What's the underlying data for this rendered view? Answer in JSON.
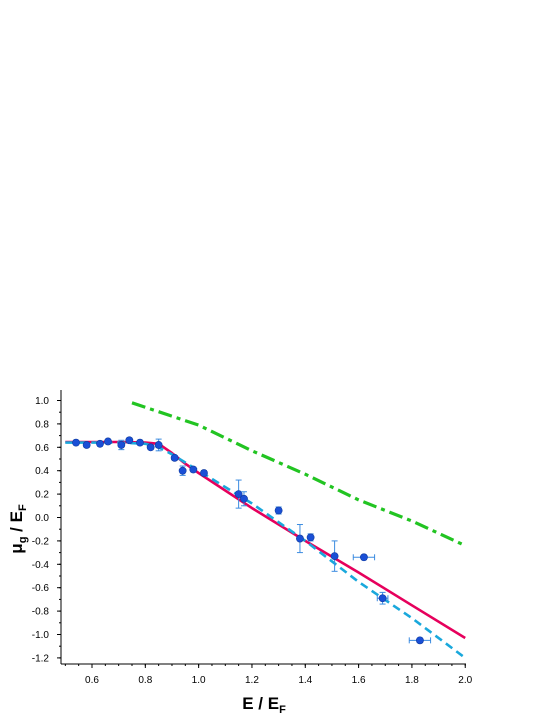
{
  "chart_data": {
    "type": "scatter",
    "x_ticks": [
      "0.6",
      "0.8",
      "1.0",
      "1.2",
      "1.4",
      "1.6",
      "1.8",
      "2.0"
    ],
    "y_ticks": [
      "1.0",
      "0.8",
      "0.6",
      "0.4",
      "0.2",
      "0.0",
      "-0.2",
      "-0.4",
      "-0.6",
      "-0.8",
      "-1.0",
      "-1.2"
    ],
    "xlabel": {
      "main": "E / E",
      "sub": "F"
    },
    "ylabel": {
      "main": "μ",
      "sub1": "g",
      "mid": " / E",
      "sub2": "F"
    },
    "xlim": [
      0.5,
      2.0
    ],
    "ylim": [
      -1.2,
      1.0
    ],
    "grid": false,
    "colors": {
      "data": "#1a4fd6",
      "solid_line": "#e6005c",
      "dashed_line": "#19a8dc",
      "dashdot_line": "#22c422"
    },
    "series": [
      {
        "style": "solid",
        "points": [
          [
            0.5,
            0.645
          ],
          [
            0.6,
            0.645
          ],
          [
            0.7,
            0.645
          ],
          [
            0.8,
            0.64
          ],
          [
            0.85,
            0.63
          ],
          [
            0.9,
            0.55
          ],
          [
            0.95,
            0.46
          ],
          [
            1.0,
            0.38
          ],
          [
            1.2,
            0.08
          ],
          [
            1.4,
            -0.2
          ],
          [
            1.6,
            -0.47
          ],
          [
            1.8,
            -0.75
          ],
          [
            2.0,
            -1.03
          ]
        ]
      },
      {
        "style": "dashed",
        "points": [
          [
            0.5,
            0.64
          ],
          [
            0.6,
            0.64
          ],
          [
            0.7,
            0.64
          ],
          [
            0.8,
            0.63
          ],
          [
            0.85,
            0.6
          ],
          [
            0.9,
            0.54
          ],
          [
            1.0,
            0.4
          ],
          [
            1.2,
            0.12
          ],
          [
            1.4,
            -0.2
          ],
          [
            1.6,
            -0.55
          ],
          [
            1.8,
            -0.86
          ],
          [
            2.0,
            -1.2
          ]
        ]
      },
      {
        "style": "dashdot",
        "points": [
          [
            0.75,
            0.98
          ],
          [
            1.0,
            0.79
          ],
          [
            1.2,
            0.57
          ],
          [
            1.4,
            0.37
          ],
          [
            1.6,
            0.15
          ],
          [
            1.8,
            -0.03
          ],
          [
            2.0,
            -0.24
          ]
        ]
      }
    ],
    "points": [
      {
        "x": 0.54,
        "y": 0.64,
        "yerr": 0.02,
        "xerr": 0
      },
      {
        "x": 0.58,
        "y": 0.62,
        "yerr": 0.02,
        "xerr": 0
      },
      {
        "x": 0.63,
        "y": 0.63,
        "yerr": 0.02,
        "xerr": 0
      },
      {
        "x": 0.66,
        "y": 0.65,
        "yerr": 0.02,
        "xerr": 0
      },
      {
        "x": 0.71,
        "y": 0.62,
        "yerr": 0.04,
        "xerr": 0
      },
      {
        "x": 0.74,
        "y": 0.66,
        "yerr": 0.02,
        "xerr": 0
      },
      {
        "x": 0.78,
        "y": 0.64,
        "yerr": 0.02,
        "xerr": 0
      },
      {
        "x": 0.82,
        "y": 0.6,
        "yerr": 0.02,
        "xerr": 0
      },
      {
        "x": 0.85,
        "y": 0.62,
        "yerr": 0.05,
        "xerr": 0
      },
      {
        "x": 0.91,
        "y": 0.51,
        "yerr": 0.02,
        "xerr": 0
      },
      {
        "x": 0.94,
        "y": 0.4,
        "yerr": 0.04,
        "xerr": 0
      },
      {
        "x": 0.98,
        "y": 0.41,
        "yerr": 0.02,
        "xerr": 0
      },
      {
        "x": 1.02,
        "y": 0.38,
        "yerr": 0.02,
        "xerr": 0
      },
      {
        "x": 1.15,
        "y": 0.2,
        "yerr": 0.12,
        "xerr": 0
      },
      {
        "x": 1.17,
        "y": 0.16,
        "yerr": 0.06,
        "xerr": 0
      },
      {
        "x": 1.3,
        "y": 0.06,
        "yerr": 0.03,
        "xerr": 0
      },
      {
        "x": 1.38,
        "y": -0.18,
        "yerr": 0.12,
        "xerr": 0
      },
      {
        "x": 1.42,
        "y": -0.17,
        "yerr": 0.03,
        "xerr": 0
      },
      {
        "x": 1.51,
        "y": -0.33,
        "yerr": 0.13,
        "xerr": 0
      },
      {
        "x": 1.62,
        "y": -0.34,
        "yerr": 0.02,
        "xerr": 0.04
      },
      {
        "x": 1.69,
        "y": -0.69,
        "yerr": 0.05,
        "xerr": 0.02
      },
      {
        "x": 1.83,
        "y": -1.05,
        "yerr": 0.02,
        "xerr": 0.04
      }
    ]
  }
}
